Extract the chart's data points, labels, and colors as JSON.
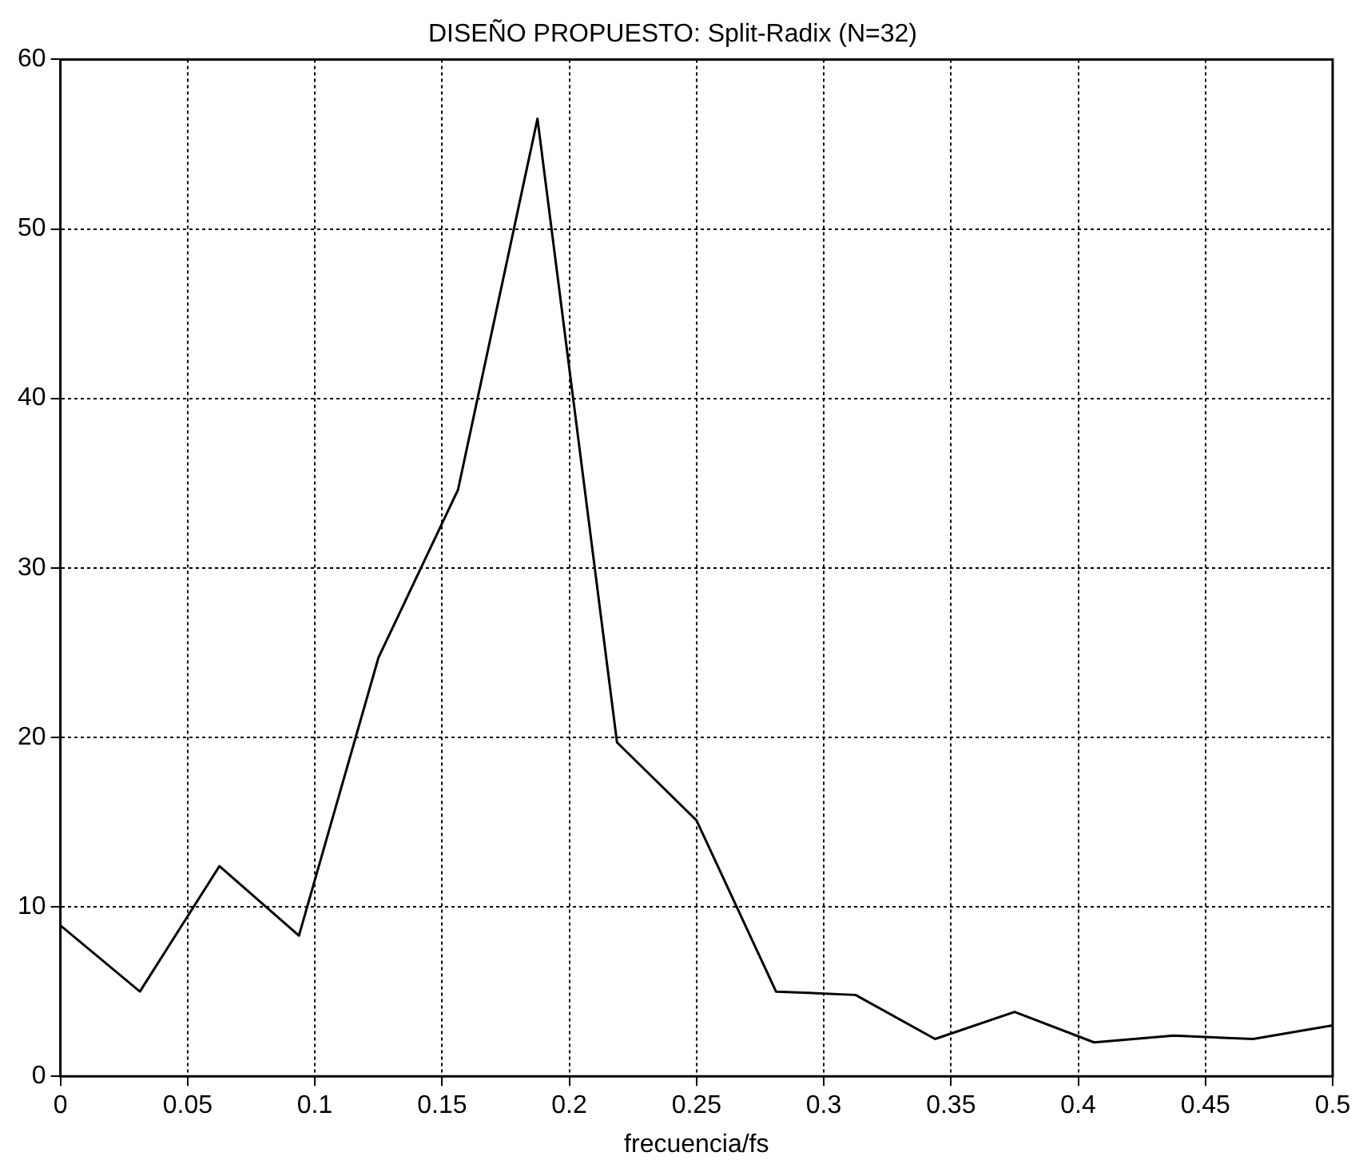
{
  "chart_data": {
    "type": "line",
    "title": "DISEÑO PROPUESTO: Split-Radix (N=32)",
    "xlabel": "frecuencia/fs",
    "x": [
      0,
      0.03125,
      0.0625,
      0.09375,
      0.125,
      0.15625,
      0.1875,
      0.21875,
      0.25,
      0.28125,
      0.3125,
      0.34375,
      0.375,
      0.40625,
      0.4375,
      0.46875,
      0.5
    ],
    "series": [
      {
        "color": "#000000",
        "values": [
          8.9,
          5.0,
          12.4,
          8.3,
          24.7,
          34.6,
          56.5,
          19.7,
          15.1,
          5.0,
          4.8,
          2.2,
          3.8,
          2.0,
          2.4,
          2.2,
          3.0
        ]
      }
    ],
    "xlim": [
      0,
      0.5
    ],
    "xticks": [
      0,
      0.05,
      0.1,
      0.15,
      0.2,
      0.25,
      0.3,
      0.35,
      0.4,
      0.45,
      0.5
    ],
    "ylim": [
      0,
      60
    ],
    "yticks": [
      0,
      10,
      20,
      30,
      40,
      50,
      60
    ],
    "grid": true,
    "legend": false,
    "marker": "none",
    "line_style": "solid"
  }
}
